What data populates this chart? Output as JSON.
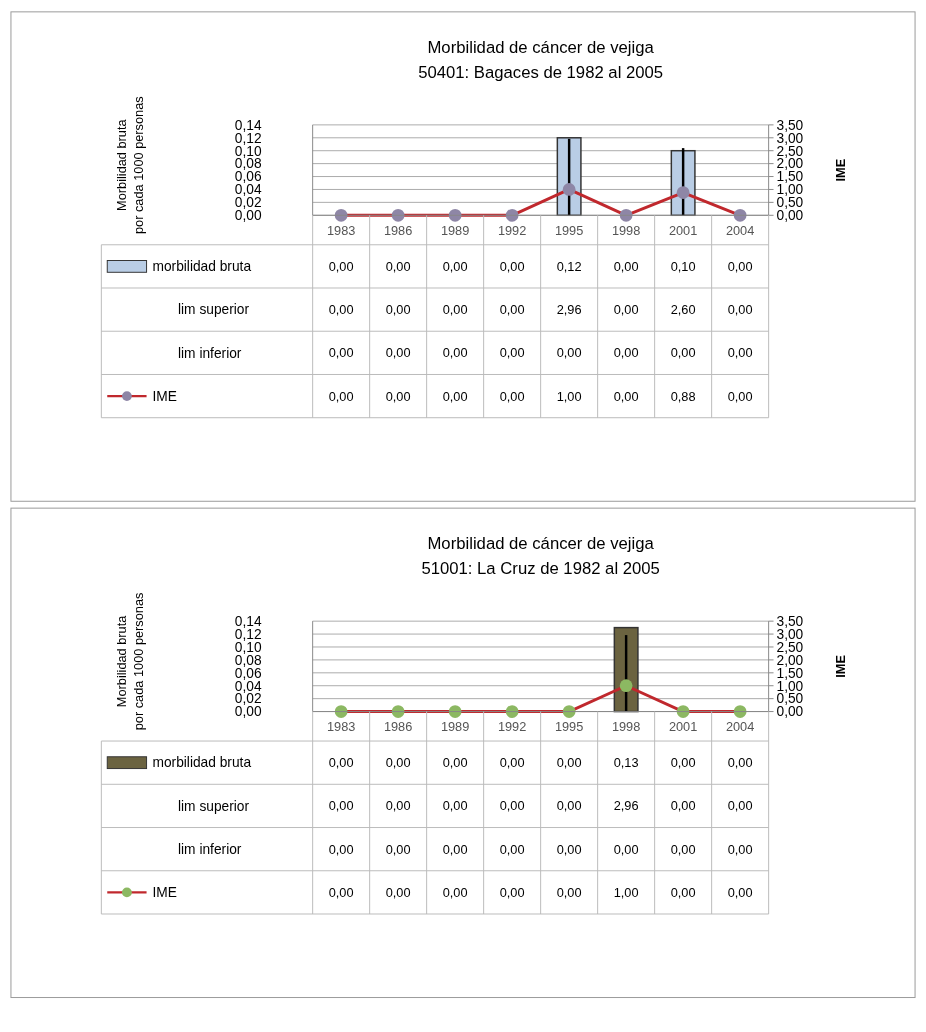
{
  "chart_data": [
    {
      "type": "bar",
      "title": "Morbilidad  de cáncer de vejiga",
      "subtitle": "50401: Bagaces de 1982 al 2005",
      "ylabel": "Morbilidad bruta\npor cada 1000 personas",
      "y2label": "IME",
      "categories": [
        "1983",
        "1986",
        "1989",
        "1992",
        "1995",
        "1998",
        "2001",
        "2004"
      ],
      "series": [
        {
          "name": "morbilidad bruta",
          "color": "#b9cde5",
          "values": [
            0,
            0,
            0,
            0,
            0.12,
            0,
            0.1,
            0
          ],
          "value_labels": [
            "0,00",
            "0,00",
            "0,00",
            "0,00",
            "0,12",
            "0,00",
            "0,10",
            "0,00"
          ]
        },
        {
          "name": "IME",
          "type": "line",
          "axis": "y2",
          "color": "#c0282d",
          "colors": [
            "#8e86a6",
            "#8e86a6",
            "#8e86a6",
            "#8e86a6",
            "#8e86a6",
            "#8e86a6",
            "#8e86a6",
            "#8e86a6"
          ],
          "values": [
            0,
            0,
            0,
            0,
            1.0,
            0,
            0.88,
            0
          ],
          "value_labels": [
            "0,00",
            "0,00",
            "0,00",
            "0,00",
            "1,00",
            "0,00",
            "0,88",
            "0,00"
          ],
          "errors": [
            [
              0,
              0
            ],
            [
              0,
              0
            ],
            [
              0,
              0
            ],
            [
              0,
              0
            ],
            [
              0,
              2.96
            ],
            [
              0,
              0
            ],
            [
              0,
              2.6
            ],
            [
              0,
              0
            ]
          ]
        }
      ],
      "annotations": [
        "lim superior",
        "lim inferior",
        "0,00",
        "0,00",
        "0,00",
        "0,00",
        "2,96",
        "0,00",
        "2,60",
        "0,00",
        "0,00",
        "0,00",
        "0,00",
        "0,00",
        "0,00",
        "0,00",
        "0,00",
        "0,00"
      ],
      "ylim": [
        0,
        0.14
      ],
      "yticks": [
        {
          "value": 0,
          "label": "0,00"
        },
        {
          "value": 0.02,
          "label": "0,02"
        },
        {
          "value": 0.04,
          "label": "0,04"
        },
        {
          "value": 0.06,
          "label": "0,06"
        },
        {
          "value": 0.08,
          "label": "0,08"
        },
        {
          "value": 0.1,
          "label": "0,10"
        },
        {
          "value": 0.12,
          "label": "0,12"
        },
        {
          "value": 0.14,
          "label": "0,14"
        }
      ],
      "y2lim": [
        0,
        3.5
      ],
      "y2ticks": [
        {
          "value": 0,
          "label": "0,00"
        },
        {
          "value": 0.5,
          "label": "0,50"
        },
        {
          "value": 1,
          "label": "1,00"
        },
        {
          "value": 1.5,
          "label": "1,50"
        },
        {
          "value": 2,
          "label": "2,00"
        },
        {
          "value": 2.5,
          "label": "2,50"
        },
        {
          "value": 3,
          "label": "3,00"
        },
        {
          "value": 3.5,
          "label": "3,50"
        }
      ],
      "grid": "y",
      "legend": "bottom left",
      "marker": "circle"
    },
    {
      "type": "bar",
      "title": "Morbilidad  de cáncer de vejiga",
      "subtitle": "51001: La Cruz de 1982 al 2005",
      "ylabel": "Morbilidad bruta\npor cada 1000 personas",
      "y2label": "IME",
      "categories": [
        "1983",
        "1986",
        "1989",
        "1992",
        "1995",
        "1998",
        "2001",
        "2004"
      ],
      "series": [
        {
          "name": "morbilidad bruta",
          "color": "#6b6340",
          "values": [
            0,
            0,
            0,
            0,
            0,
            0.13,
            0,
            0
          ],
          "value_labels": [
            "0,00",
            "0,00",
            "0,00",
            "0,00",
            "0,00",
            "0,13",
            "0,00",
            "0,00"
          ]
        },
        {
          "name": "IME",
          "type": "line",
          "axis": "y2",
          "color": "#c0282d",
          "colors": [
            "#8cb862",
            "#8cb862",
            "#8cb862",
            "#8cb862",
            "#8cb862",
            "#8cb862",
            "#8cb862",
            "#8cb862"
          ],
          "values": [
            0,
            0,
            0,
            0,
            0,
            1.0,
            0,
            0
          ],
          "value_labels": [
            "0,00",
            "0,00",
            "0,00",
            "0,00",
            "0,00",
            "1,00",
            "0,00",
            "0,00"
          ],
          "errors": [
            [
              0,
              0
            ],
            [
              0,
              0
            ],
            [
              0,
              0
            ],
            [
              0,
              0
            ],
            [
              0,
              0
            ],
            [
              0,
              2.96
            ],
            [
              0,
              0
            ],
            [
              0,
              0
            ]
          ]
        }
      ],
      "annotations": [
        "lim superior",
        "lim inferior",
        "0,00",
        "0,00",
        "0,00",
        "0,00",
        "0,00",
        "2,96",
        "0,00",
        "0,00",
        "0,00",
        "0,00",
        "0,00",
        "0,00",
        "0,00",
        "0,00",
        "0,00",
        "0,00"
      ],
      "ylim": [
        0,
        0.14
      ],
      "yticks": [
        {
          "value": 0,
          "label": "0,00"
        },
        {
          "value": 0.02,
          "label": "0,02"
        },
        {
          "value": 0.04,
          "label": "0,04"
        },
        {
          "value": 0.06,
          "label": "0,06"
        },
        {
          "value": 0.08,
          "label": "0,08"
        },
        {
          "value": 0.1,
          "label": "0,10"
        },
        {
          "value": 0.12,
          "label": "0,12"
        },
        {
          "value": 0.14,
          "label": "0,14"
        }
      ],
      "y2lim": [
        0,
        3.5
      ],
      "y2ticks": [
        {
          "value": 0,
          "label": "0,00"
        },
        {
          "value": 0.5,
          "label": "0,50"
        },
        {
          "value": 1,
          "label": "1,00"
        },
        {
          "value": 1.5,
          "label": "1,50"
        },
        {
          "value": 2,
          "label": "2,00"
        },
        {
          "value": 2.5,
          "label": "2,50"
        },
        {
          "value": 3,
          "label": "3,00"
        },
        {
          "value": 3.5,
          "label": "3,50"
        }
      ],
      "grid": "y",
      "legend": "bottom left",
      "marker": "circle"
    }
  ]
}
